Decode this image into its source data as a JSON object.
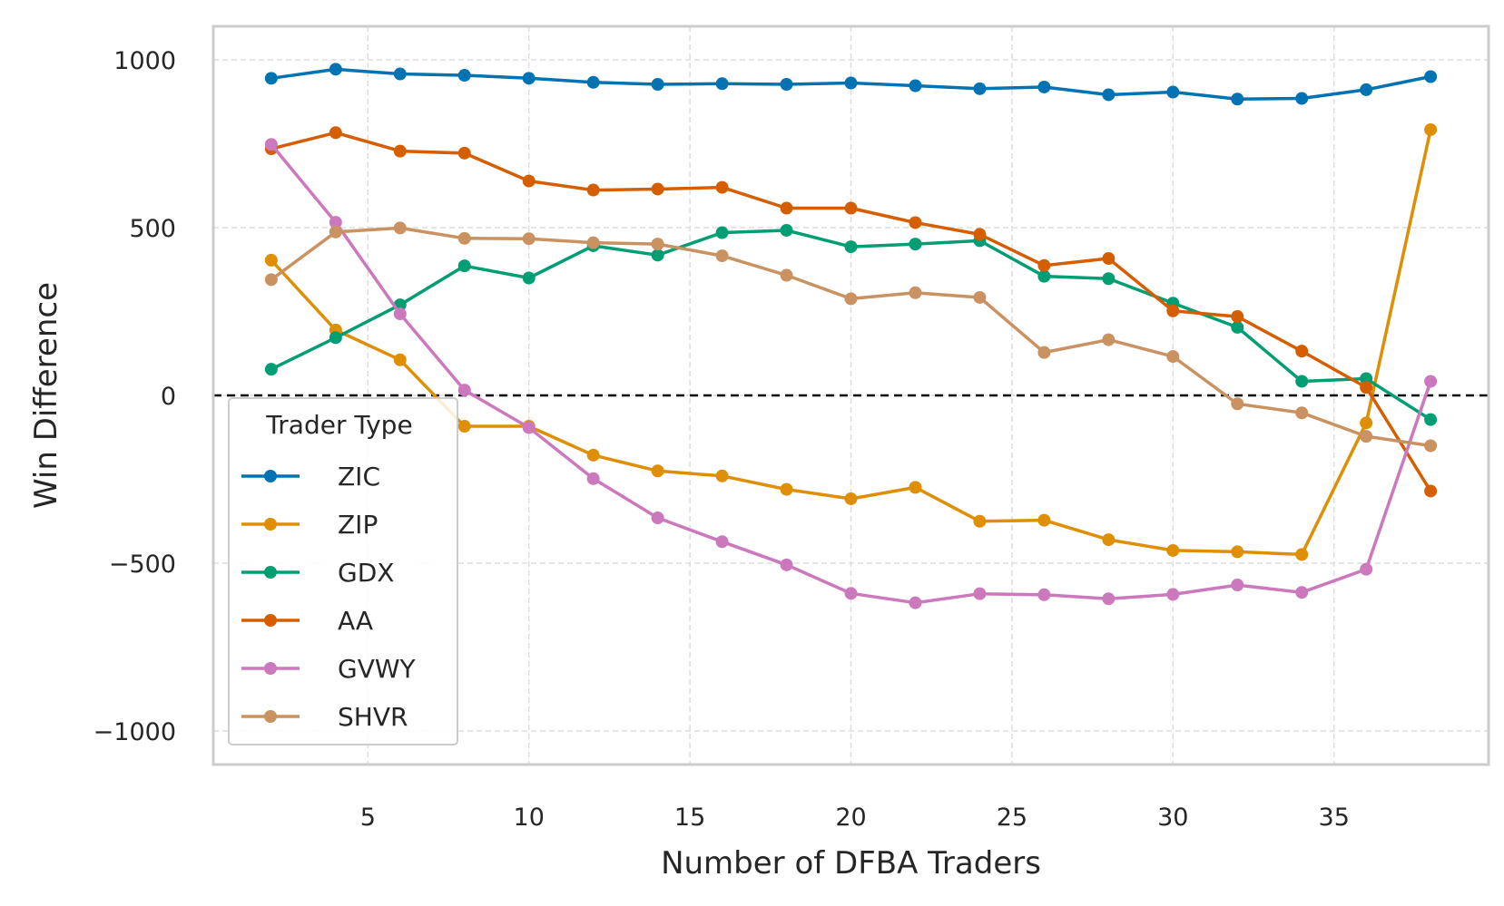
{
  "chart_data": {
    "type": "line",
    "xlabel": "Number of DFBA Traders",
    "ylabel": "Win Difference",
    "xlim": [
      0.2,
      39.8
    ],
    "ylim": [
      -1100,
      1100
    ],
    "xticks": [
      5,
      10,
      15,
      20,
      25,
      30,
      35
    ],
    "xtick_labels": [
      "5",
      "10",
      "15",
      "20",
      "25",
      "30",
      "35"
    ],
    "yticks": [
      1000,
      500,
      0,
      -500,
      -1000
    ],
    "ytick_labels": [
      "1000",
      "500",
      "0",
      "−500",
      "−1000"
    ],
    "grid": true,
    "reference_line": 0,
    "legend_title": "Trader Type",
    "legend_position": "lower-left",
    "x": [
      2,
      4,
      6,
      8,
      10,
      12,
      14,
      16,
      18,
      20,
      22,
      24,
      26,
      28,
      30,
      32,
      34,
      36,
      38
    ],
    "series": [
      {
        "name": "ZIC",
        "color": "#0173b2",
        "values": [
          945,
          972,
          958,
          954,
          945,
          933,
          927,
          929,
          927,
          931,
          923,
          914,
          919,
          896,
          904,
          883,
          885,
          911,
          950
        ]
      },
      {
        "name": "ZIP",
        "color": "#de8f05",
        "values": [
          403,
          195,
          106,
          -92,
          -92,
          -178,
          -225,
          -240,
          -280,
          -308,
          -274,
          -375,
          -372,
          -430,
          -462,
          -466,
          -474,
          -82,
          792
        ]
      },
      {
        "name": "GDX",
        "color": "#029e73",
        "values": [
          78,
          172,
          270,
          386,
          350,
          446,
          418,
          485,
          492,
          443,
          451,
          461,
          355,
          348,
          275,
          203,
          42,
          50,
          -72
        ]
      },
      {
        "name": "AA",
        "color": "#d55e00",
        "values": [
          735,
          783,
          728,
          722,
          639,
          612,
          615,
          620,
          558,
          558,
          515,
          480,
          387,
          408,
          252,
          235,
          132,
          24,
          -285
        ]
      },
      {
        "name": "GVWY",
        "color": "#cc78bc",
        "values": [
          748,
          516,
          243,
          16,
          -96,
          -248,
          -365,
          -436,
          -505,
          -590,
          -618,
          -591,
          -594,
          -606,
          -593,
          -565,
          -587,
          -518,
          42
        ]
      },
      {
        "name": "SHVR",
        "color": "#ca9161",
        "values": [
          345,
          487,
          499,
          468,
          467,
          455,
          451,
          416,
          358,
          288,
          306,
          292,
          128,
          166,
          116,
          -25,
          -52,
          -122,
          -150
        ]
      }
    ]
  }
}
